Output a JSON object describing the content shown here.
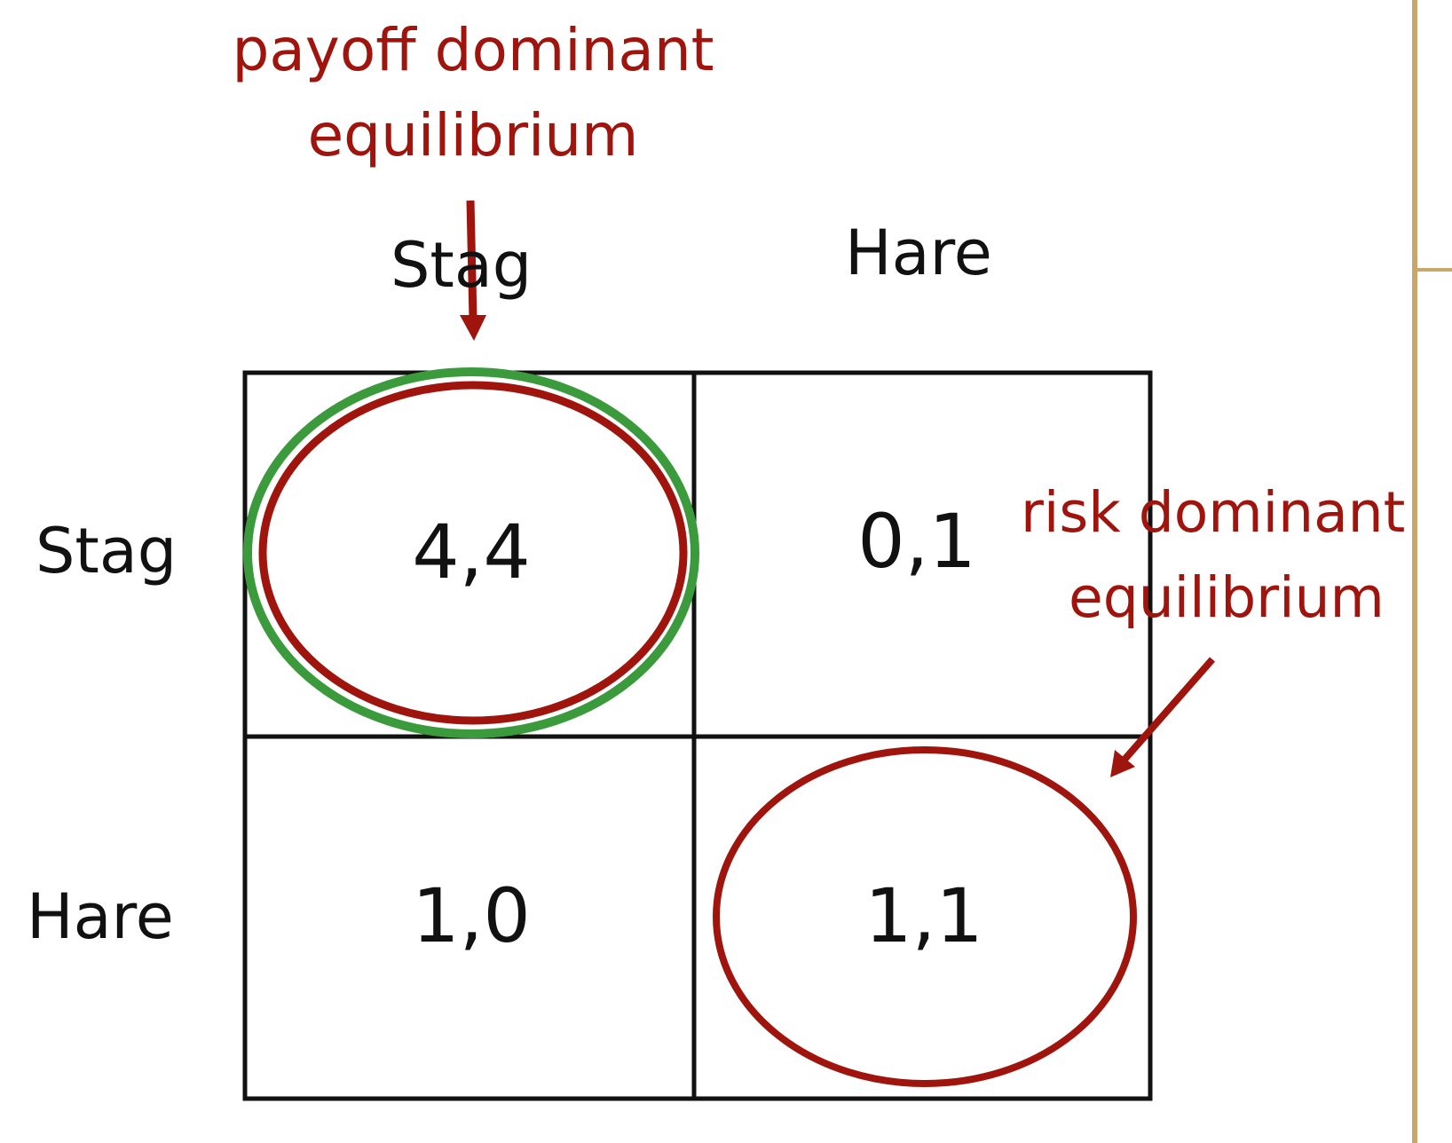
{
  "annotations": {
    "payoff_line1": "payoff dominant",
    "payoff_line2": "equilibrium",
    "risk_line1": "risk dominant",
    "risk_line2": "equilibrium"
  },
  "columns": [
    "Stag",
    "Hare"
  ],
  "rows": [
    "Stag",
    "Hare"
  ],
  "cells": [
    [
      "4,4",
      "0,1"
    ],
    [
      "1,0",
      "1,1"
    ]
  ],
  "colors": {
    "annotation": "#a0140e",
    "payoff_ellipse_outer": "#3a9a3c",
    "payoff_ellipse_inner": "#a0140e",
    "risk_ellipse": "#a0140e",
    "slide_edge": "#c9a66b",
    "grid": "#111111"
  }
}
